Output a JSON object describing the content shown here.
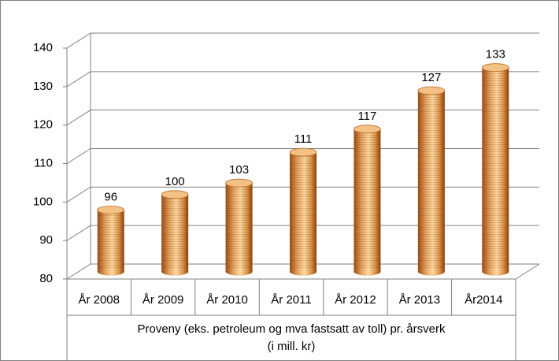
{
  "chart_data": {
    "type": "bar",
    "categories": [
      "År 2008",
      "År 2009",
      "År 2010",
      "År 2011",
      "År 2012",
      "År 2013",
      "År2014"
    ],
    "values": [
      96,
      100,
      103,
      111,
      117,
      127,
      133
    ],
    "color": "#e39a4c",
    "ylim": [
      80,
      140
    ],
    "yticks": [
      80,
      90,
      100,
      110,
      120,
      130,
      140
    ],
    "grid": true,
    "x_label": [
      "Proveny (eks. petroleum og mva fastsatt av toll) pr. årsverk",
      "(i mill. kr)"
    ]
  }
}
